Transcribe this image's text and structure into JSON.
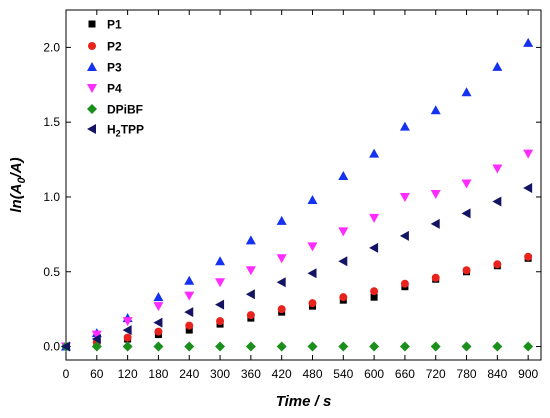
{
  "chart_data": {
    "type": "scatter",
    "xlabel": "Time / s",
    "ylabel_main": "ln(A",
    "ylabel_sub": "0",
    "ylabel_tail": "/A)",
    "xlim": [
      0,
      925
    ],
    "ylim": [
      -0.09,
      2.25
    ],
    "x_ticks": [
      0,
      60,
      120,
      180,
      240,
      300,
      360,
      420,
      480,
      540,
      600,
      660,
      720,
      780,
      840,
      900
    ],
    "y_ticks": [
      0.0,
      0.5,
      1.0,
      1.5,
      2.0
    ],
    "y_tick_labels": [
      "0.0",
      "0.5",
      "1.0",
      "1.5",
      "2.0"
    ],
    "grid": false,
    "legend_position": "top-left",
    "x": [
      0,
      60,
      120,
      180,
      240,
      300,
      360,
      420,
      480,
      540,
      600,
      660,
      720,
      780,
      840,
      900
    ],
    "series": [
      {
        "name": "P1",
        "marker": "square",
        "color": "#000000",
        "values": [
          0.0,
          0.02,
          0.05,
          0.08,
          0.11,
          0.15,
          0.19,
          0.23,
          0.27,
          0.31,
          0.33,
          0.4,
          0.45,
          0.5,
          0.54,
          0.59
        ]
      },
      {
        "name": "P2",
        "marker": "circle",
        "color": "#e8231d",
        "values": [
          0.0,
          0.03,
          0.06,
          0.1,
          0.14,
          0.17,
          0.21,
          0.25,
          0.29,
          0.33,
          0.37,
          0.42,
          0.46,
          0.51,
          0.55,
          0.6
        ]
      },
      {
        "name": "P3",
        "marker": "triangle-up",
        "color": "#1432f0",
        "values": [
          0.0,
          0.09,
          0.19,
          0.33,
          0.44,
          0.57,
          0.71,
          0.84,
          0.98,
          1.14,
          1.29,
          1.47,
          1.58,
          1.7,
          1.87,
          2.03
        ]
      },
      {
        "name": "P4",
        "marker": "triangle-down",
        "color": "#ff2bff",
        "values": [
          0.0,
          0.08,
          0.17,
          0.27,
          0.34,
          0.43,
          0.51,
          0.59,
          0.67,
          0.77,
          0.86,
          1.0,
          1.02,
          1.09,
          1.19,
          1.29
        ]
      },
      {
        "name": "DPiBF",
        "marker": "diamond",
        "color": "#1b8f1b",
        "values": [
          0.0,
          0.0,
          0.0,
          0.0,
          0.0,
          0.0,
          0.0,
          0.0,
          0.0,
          0.0,
          0.0,
          0.0,
          0.0,
          0.0,
          0.0,
          0.0
        ]
      },
      {
        "name_main": "H",
        "name_sub": "2",
        "name_tail": "TPP",
        "marker": "triangle-left",
        "color": "#141464",
        "values": [
          0.0,
          0.05,
          0.11,
          0.16,
          0.23,
          0.28,
          0.35,
          0.43,
          0.49,
          0.57,
          0.66,
          0.74,
          0.82,
          0.89,
          0.97,
          1.06
        ]
      }
    ]
  }
}
